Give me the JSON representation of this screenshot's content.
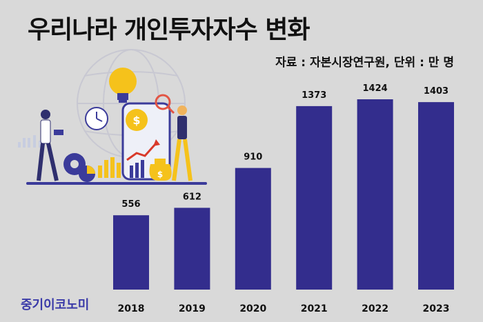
{
  "header": {
    "title": "우리나라 개인투자자수 변화",
    "source": "자료 : 자본시장연구원, 단위 : 만 명"
  },
  "brand": {
    "name": "중기이코노미",
    "color": "#3a3aa8"
  },
  "colors": {
    "bar": "#332d8d",
    "background": "#d9d9d9"
  },
  "illustration": {
    "icons": [
      "globe-icon",
      "lightbulb-icon",
      "clock-icon",
      "coin-icon",
      "gear-icon",
      "magnifier-icon",
      "money-bag-icon",
      "pie-chart-icon",
      "rising-arrow-icon"
    ]
  },
  "chart_data": {
    "type": "bar",
    "categories": [
      "2018",
      "2019",
      "2020",
      "2021",
      "2022",
      "2023"
    ],
    "values": [
      556,
      612,
      910,
      1373,
      1424,
      1403
    ],
    "title": "우리나라 개인투자자수 변화",
    "xlabel": "",
    "ylabel": "",
    "ylim": [
      0,
      1424
    ],
    "grid": false,
    "legend": "none"
  }
}
